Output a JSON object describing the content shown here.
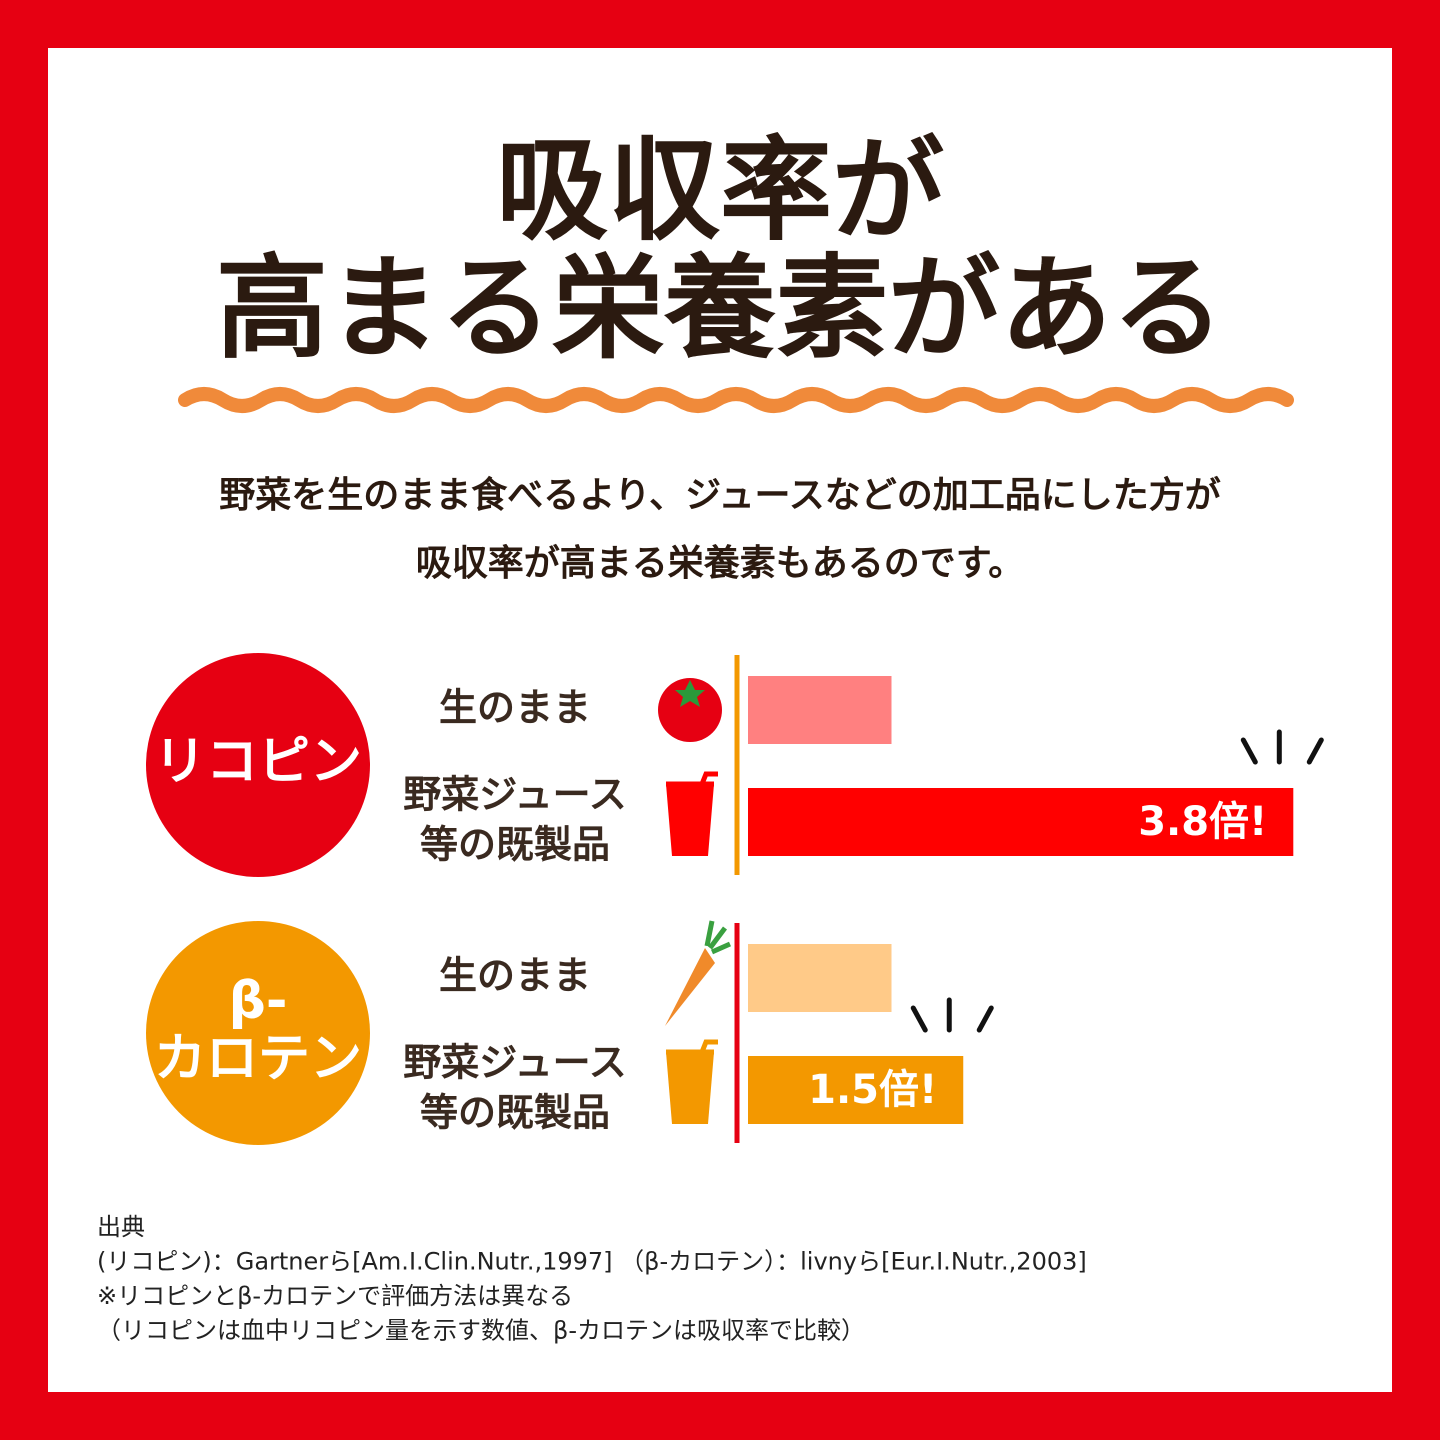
{
  "title": [
    "吸収率が",
    "高まる栄養素がある"
  ],
  "lead": [
    "野菜を生のまま食べるより、ジュースなどの加工品にした方が",
    "吸収率が高まる栄養素もあるのです。"
  ],
  "chart_data": {
    "type": "bar",
    "orientation": "horizontal",
    "xlim": [
      0,
      4
    ],
    "categories": [
      [
        "生のまま"
      ],
      [
        "野菜ジュース",
        "等の既製品"
      ]
    ],
    "groups": [
      {
        "name": [
          "リコピン"
        ],
        "color": "#e60012",
        "axis_color": "#f39800",
        "bar_colors": [
          "#ff8080",
          "#ff0000"
        ],
        "values": [
          1,
          3.8
        ],
        "value_labels": [
          null,
          "3.8倍!"
        ]
      },
      {
        "name": [
          "β-",
          "カロテン"
        ],
        "color": "#f39800",
        "axis_color": "#e60012",
        "bar_colors": [
          "#ffca88",
          "#f39800"
        ],
        "values": [
          1,
          1.5
        ],
        "value_labels": [
          null,
          "1.5倍!"
        ]
      }
    ]
  },
  "footnotes": [
    "出典",
    "(リコピン)：Gartnerら[Am.I.Clin.Nutr.,1997] （β-カロテン）：livnyら[Eur.I.Nutr.,2003]",
    "※リコピンとβ-カロテンで評価方法は異なる",
    "（リコピンは血中リコピン量を示す数値、β-カロテンは吸収率で比較）"
  ]
}
